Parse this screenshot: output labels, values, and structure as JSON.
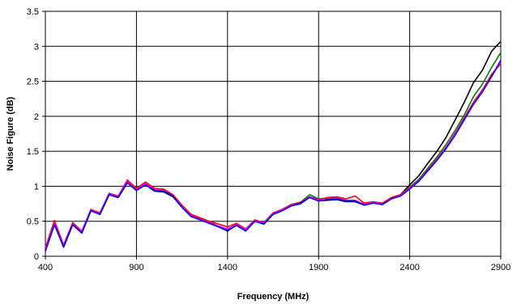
{
  "chart_data": {
    "type": "line",
    "title": "",
    "xlabel": "Frequency (MHz)",
    "ylabel": "Noise Figure (dB)",
    "xlim": [
      400,
      2900
    ],
    "ylim": [
      0,
      3.5
    ],
    "x_ticks": [
      "400",
      "900",
      "1400",
      "1900",
      "2400",
      "2900"
    ],
    "y_ticks": [
      "0",
      "0.5",
      "1",
      "1.5",
      "2",
      "2.5",
      "3",
      "3.5"
    ],
    "x_tick_values": [
      400,
      900,
      1400,
      1900,
      2400,
      2900
    ],
    "y_tick_values": [
      0,
      0.5,
      1,
      1.5,
      2,
      2.5,
      3,
      3.5
    ],
    "grid": true,
    "legend": "none",
    "x": [
      400,
      450,
      500,
      550,
      600,
      650,
      700,
      750,
      800,
      850,
      900,
      950,
      1000,
      1050,
      1100,
      1150,
      1200,
      1250,
      1300,
      1350,
      1400,
      1450,
      1500,
      1550,
      1600,
      1650,
      1700,
      1750,
      1800,
      1850,
      1900,
      1950,
      2000,
      2050,
      2100,
      2150,
      2200,
      2250,
      2300,
      2350,
      2400,
      2450,
      2500,
      2550,
      2600,
      2650,
      2700,
      2750,
      2800,
      2850,
      2900
    ],
    "series": [
      {
        "color": "#000000",
        "values": [
          0.1,
          0.46,
          0.13,
          0.45,
          0.34,
          0.65,
          0.6,
          0.88,
          0.84,
          1.05,
          0.94,
          1.02,
          0.93,
          0.92,
          0.85,
          0.7,
          0.57,
          0.52,
          0.47,
          0.42,
          0.36,
          0.45,
          0.37,
          0.5,
          0.46,
          0.6,
          0.65,
          0.72,
          0.75,
          0.84,
          0.79,
          0.8,
          0.81,
          0.78,
          0.78,
          0.73,
          0.76,
          0.74,
          0.82,
          0.88,
          1.02,
          1.15,
          1.33,
          1.5,
          1.7,
          1.95,
          2.2,
          2.48,
          2.66,
          2.93,
          3.07
        ]
      },
      {
        "color": "#008000",
        "values": [
          0.08,
          0.48,
          0.15,
          0.47,
          0.35,
          0.66,
          0.62,
          0.9,
          0.86,
          1.06,
          0.96,
          1.04,
          0.95,
          0.94,
          0.87,
          0.72,
          0.59,
          0.54,
          0.49,
          0.43,
          0.38,
          0.46,
          0.38,
          0.52,
          0.47,
          0.61,
          0.66,
          0.74,
          0.77,
          0.88,
          0.82,
          0.83,
          0.84,
          0.8,
          0.79,
          0.75,
          0.77,
          0.76,
          0.83,
          0.87,
          0.99,
          1.1,
          1.26,
          1.42,
          1.6,
          1.8,
          2.02,
          2.28,
          2.46,
          2.7,
          2.91
        ]
      },
      {
        "color": "#ff0000",
        "values": [
          0.12,
          0.51,
          0.16,
          0.48,
          0.36,
          0.67,
          0.62,
          0.9,
          0.86,
          1.09,
          0.97,
          1.06,
          0.97,
          0.96,
          0.88,
          0.73,
          0.6,
          0.55,
          0.5,
          0.46,
          0.42,
          0.47,
          0.39,
          0.52,
          0.48,
          0.62,
          0.67,
          0.74,
          0.77,
          0.85,
          0.81,
          0.84,
          0.85,
          0.82,
          0.86,
          0.76,
          0.78,
          0.76,
          0.84,
          0.88,
          0.98,
          1.08,
          1.24,
          1.39,
          1.56,
          1.76,
          1.98,
          2.2,
          2.38,
          2.6,
          2.75
        ]
      },
      {
        "color": "#ff00ff",
        "values": [
          0.09,
          0.47,
          0.14,
          0.46,
          0.35,
          0.66,
          0.61,
          0.89,
          0.85,
          1.07,
          0.95,
          1.04,
          0.95,
          0.94,
          0.86,
          0.71,
          0.58,
          0.53,
          0.48,
          0.43,
          0.39,
          0.45,
          0.38,
          0.51,
          0.47,
          0.61,
          0.66,
          0.73,
          0.76,
          0.85,
          0.8,
          0.82,
          0.83,
          0.8,
          0.8,
          0.74,
          0.77,
          0.75,
          0.82,
          0.87,
          0.97,
          1.08,
          1.23,
          1.38,
          1.55,
          1.75,
          1.96,
          2.18,
          2.36,
          2.57,
          2.78
        ]
      },
      {
        "color": "#0000ff",
        "values": [
          0.07,
          0.45,
          0.13,
          0.45,
          0.33,
          0.65,
          0.6,
          0.88,
          0.84,
          1.05,
          0.94,
          1.02,
          0.94,
          0.93,
          0.86,
          0.7,
          0.57,
          0.52,
          0.47,
          0.42,
          0.37,
          0.44,
          0.36,
          0.5,
          0.46,
          0.6,
          0.65,
          0.72,
          0.76,
          0.84,
          0.79,
          0.81,
          0.82,
          0.79,
          0.79,
          0.73,
          0.76,
          0.74,
          0.82,
          0.86,
          0.96,
          1.07,
          1.22,
          1.37,
          1.54,
          1.73,
          1.95,
          2.17,
          2.35,
          2.57,
          2.8
        ]
      }
    ]
  }
}
